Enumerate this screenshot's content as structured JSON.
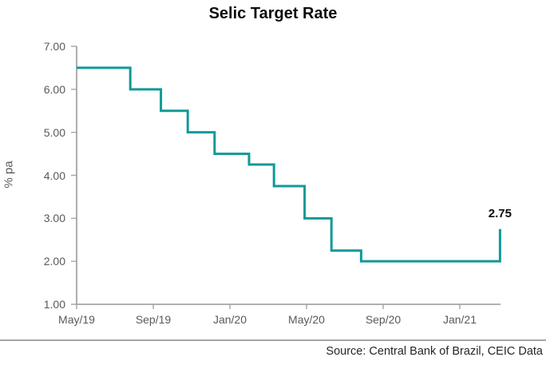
{
  "title": "Selic Target Rate",
  "source": {
    "text": "Source: Central Bank of Brazil, CEIC Data"
  },
  "colors": {
    "line": "#119999",
    "axis": "#a6a6a6",
    "tick_text": "#595959",
    "title_text": "#0d0d0d"
  },
  "chart_data": {
    "type": "line",
    "subtype": "step",
    "title": "Selic Target Rate",
    "series_name": "Selic Target Rate",
    "xlabel": "",
    "ylabel": "% pa",
    "ylim": [
      1.0,
      7.0
    ],
    "grid": false,
    "legend": false,
    "line_color": "#119999",
    "end_label": "2.75",
    "y_ticks": [
      {
        "v": 7,
        "label": "7.00"
      },
      {
        "v": 6,
        "label": "6.00"
      },
      {
        "v": 5,
        "label": "5.00"
      },
      {
        "v": 4,
        "label": "4.00"
      },
      {
        "v": 3,
        "label": "3.00"
      },
      {
        "v": 2,
        "label": "2.00"
      },
      {
        "v": 1,
        "label": "1.00"
      }
    ],
    "x_ticks": [
      {
        "m": 0,
        "label": "May/19"
      },
      {
        "m": 4,
        "label": "Sep/19"
      },
      {
        "m": 8,
        "label": "Jan/20"
      },
      {
        "m": 12,
        "label": "May/20"
      },
      {
        "m": 16,
        "label": "Sep/20"
      },
      {
        "m": 20,
        "label": "Jan/21"
      }
    ],
    "points": [
      {
        "date": "2019-05-01",
        "m": 0,
        "v": 6.5
      },
      {
        "date": "2019-07-31",
        "m": 2.8,
        "v": 6.0
      },
      {
        "date": "2019-09-18",
        "m": 4.4,
        "v": 5.5
      },
      {
        "date": "2019-10-30",
        "m": 5.8,
        "v": 5.0
      },
      {
        "date": "2019-12-11",
        "m": 7.2,
        "v": 4.5
      },
      {
        "date": "2020-02-05",
        "m": 9.0,
        "v": 4.25
      },
      {
        "date": "2020-03-18",
        "m": 10.3,
        "v": 3.75
      },
      {
        "date": "2020-05-06",
        "m": 11.9,
        "v": 3.0
      },
      {
        "date": "2020-06-17",
        "m": 13.3,
        "v": 2.25
      },
      {
        "date": "2020-08-05",
        "m": 14.85,
        "v": 2.0
      },
      {
        "date": "2021-03-17",
        "m": 22.1,
        "v": 2.75
      }
    ]
  }
}
